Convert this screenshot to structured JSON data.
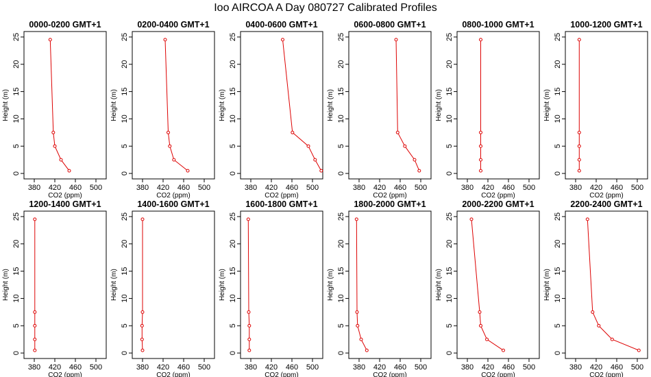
{
  "chart_data": {
    "title": "Ioo AIRCOA A  Day 080727  Calibrated Profiles",
    "type": "line",
    "series_color": "#dd0000",
    "xlabel": "CO2 (ppm)",
    "ylabel": "Height (m)",
    "xlim": [
      360,
      520
    ],
    "ylim": [
      0,
      25
    ],
    "xticks": [
      380,
      420,
      460,
      500
    ],
    "yticks": [
      0,
      5,
      10,
      15,
      20,
      25
    ],
    "heights": [
      0.5,
      2.5,
      5,
      7.5,
      24.5
    ],
    "panels": [
      {
        "title": "0000-0200 GMT+1",
        "co2": [
          448,
          432,
          420,
          417,
          411
        ]
      },
      {
        "title": "0200-0400 GMT+1",
        "co2": [
          468,
          441,
          433,
          430,
          424
        ]
      },
      {
        "title": "0400-0600 GMT+1",
        "co2": [
          517,
          505,
          492,
          461,
          442
        ]
      },
      {
        "title": "0600-0800 GMT+1",
        "co2": [
          497,
          488,
          469,
          455,
          452
        ]
      },
      {
        "title": "0800-1000 GMT+1",
        "co2": [
          406,
          406,
          406,
          406,
          406
        ]
      },
      {
        "title": "1000-1200 GMT+1",
        "co2": [
          387,
          387,
          387,
          387,
          387
        ]
      },
      {
        "title": "1200-1400 GMT+1",
        "co2": [
          381,
          381,
          381,
          381,
          381
        ]
      },
      {
        "title": "1400-1600 GMT+1",
        "co2": [
          380,
          379,
          379,
          380,
          380
        ]
      },
      {
        "title": "1600-1800 GMT+1",
        "co2": [
          377,
          377,
          377,
          376,
          375
        ]
      },
      {
        "title": "1800-2000 GMT+1",
        "co2": [
          395,
          384,
          377,
          376,
          375
        ]
      },
      {
        "title": "2000-2200 GMT+1",
        "co2": [
          450,
          418,
          406,
          404,
          388
        ]
      },
      {
        "title": "2200-2400 GMT+1",
        "co2": [
          503,
          451,
          425,
          413,
          403
        ]
      }
    ]
  }
}
